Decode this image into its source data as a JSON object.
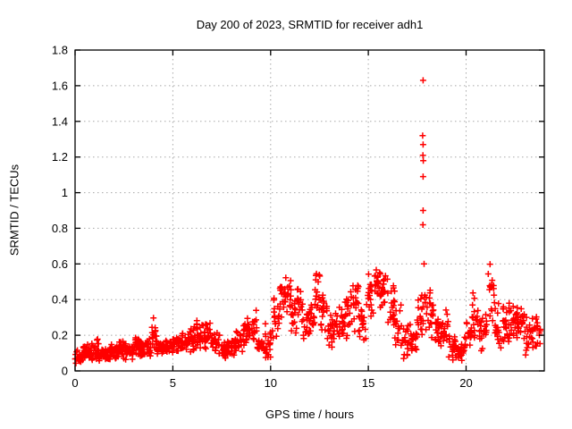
{
  "chart_data": {
    "type": "scatter",
    "title": "Day 200 of 2023, SRMTID for receiver adh1",
    "xlabel": "GPS time / hours",
    "ylabel": "SRMTID / TECUs",
    "xlim": [
      0,
      24
    ],
    "ylim": [
      0,
      1.8
    ],
    "xtick_values": [
      0,
      5,
      10,
      15,
      20
    ],
    "xtick_labels": [
      "0",
      "5",
      "10",
      "15",
      "20"
    ],
    "ytick_values": [
      0,
      0.2,
      0.4,
      0.6,
      0.8,
      1.0,
      1.2,
      1.4,
      1.6,
      1.8
    ],
    "ytick_labels": [
      "0",
      "0.2",
      "0.4",
      "0.6",
      "0.8",
      "1",
      "1.2",
      "1.4",
      "1.6",
      "1.8"
    ],
    "grid": true,
    "legend": "none",
    "marker": "plus",
    "marker_color": "#ff0000",
    "grid_color": "#a8a8a8",
    "axis_color": "#000000",
    "density_bins": [
      [
        0.0,
        0.3,
        0.04,
        0.12,
        20
      ],
      [
        0.3,
        0.6,
        0.05,
        0.15,
        20
      ],
      [
        0.6,
        0.9,
        0.05,
        0.17,
        20
      ],
      [
        0.9,
        1.2,
        0.06,
        0.19,
        20
      ],
      [
        1.2,
        1.5,
        0.05,
        0.14,
        20
      ],
      [
        1.5,
        1.8,
        0.05,
        0.13,
        18
      ],
      [
        1.8,
        2.1,
        0.06,
        0.16,
        20
      ],
      [
        2.1,
        2.4,
        0.07,
        0.17,
        20
      ],
      [
        2.4,
        2.7,
        0.06,
        0.18,
        20
      ],
      [
        2.7,
        3.0,
        0.06,
        0.15,
        20
      ],
      [
        3.0,
        3.3,
        0.08,
        0.2,
        20
      ],
      [
        3.3,
        3.6,
        0.07,
        0.18,
        20
      ],
      [
        3.6,
        3.9,
        0.08,
        0.21,
        20
      ],
      [
        3.9,
        4.2,
        0.1,
        0.31,
        18
      ],
      [
        4.2,
        4.6,
        0.08,
        0.19,
        24
      ],
      [
        4.6,
        5.0,
        0.09,
        0.19,
        24
      ],
      [
        5.0,
        5.4,
        0.1,
        0.21,
        24
      ],
      [
        5.4,
        5.8,
        0.1,
        0.22,
        24
      ],
      [
        5.8,
        6.2,
        0.1,
        0.26,
        24
      ],
      [
        6.2,
        6.6,
        0.1,
        0.3,
        24
      ],
      [
        6.6,
        7.0,
        0.1,
        0.28,
        24
      ],
      [
        7.0,
        7.4,
        0.08,
        0.22,
        22
      ],
      [
        7.4,
        7.8,
        0.06,
        0.18,
        22
      ],
      [
        7.8,
        8.2,
        0.07,
        0.19,
        22
      ],
      [
        8.2,
        8.6,
        0.09,
        0.25,
        22
      ],
      [
        8.6,
        9.0,
        0.12,
        0.32,
        22
      ],
      [
        9.0,
        9.3,
        0.15,
        0.37,
        16
      ],
      [
        9.3,
        9.7,
        0.08,
        0.2,
        18
      ],
      [
        9.7,
        10.1,
        0.04,
        0.28,
        20
      ],
      [
        10.1,
        10.45,
        0.15,
        0.48,
        18
      ],
      [
        10.45,
        10.75,
        0.25,
        0.56,
        16
      ],
      [
        10.75,
        11.05,
        0.28,
        0.55,
        16
      ],
      [
        11.05,
        11.35,
        0.18,
        0.42,
        16
      ],
      [
        11.35,
        11.65,
        0.25,
        0.5,
        16
      ],
      [
        11.65,
        12.0,
        0.12,
        0.35,
        18
      ],
      [
        12.0,
        12.25,
        0.18,
        0.42,
        14
      ],
      [
        12.25,
        12.55,
        0.28,
        0.62,
        16
      ],
      [
        12.55,
        12.9,
        0.18,
        0.52,
        18
      ],
      [
        12.9,
        13.3,
        0.12,
        0.35,
        20
      ],
      [
        13.3,
        13.7,
        0.15,
        0.42,
        20
      ],
      [
        13.7,
        14.1,
        0.18,
        0.45,
        20
      ],
      [
        14.1,
        14.5,
        0.22,
        0.52,
        20
      ],
      [
        14.5,
        14.9,
        0.15,
        0.4,
        20
      ],
      [
        14.9,
        15.25,
        0.28,
        0.55,
        18
      ],
      [
        15.25,
        15.6,
        0.35,
        0.63,
        18
      ],
      [
        15.6,
        16.0,
        0.3,
        0.58,
        20
      ],
      [
        16.0,
        16.35,
        0.25,
        0.52,
        18
      ],
      [
        16.35,
        16.7,
        0.1,
        0.4,
        18
      ],
      [
        16.7,
        17.1,
        0.05,
        0.28,
        20
      ],
      [
        17.1,
        17.5,
        0.08,
        0.3,
        20
      ],
      [
        17.5,
        17.9,
        0.18,
        0.47,
        20
      ],
      [
        17.9,
        18.3,
        0.15,
        0.52,
        20
      ],
      [
        18.3,
        18.7,
        0.12,
        0.38,
        20
      ],
      [
        18.7,
        19.1,
        0.08,
        0.35,
        20
      ],
      [
        19.1,
        19.5,
        0.04,
        0.22,
        20
      ],
      [
        19.5,
        19.9,
        0.03,
        0.18,
        20
      ],
      [
        19.9,
        20.3,
        0.08,
        0.33,
        20
      ],
      [
        20.3,
        20.7,
        0.12,
        0.45,
        20
      ],
      [
        20.7,
        21.1,
        0.1,
        0.35,
        20
      ],
      [
        21.1,
        21.45,
        0.25,
        0.64,
        16
      ],
      [
        21.45,
        21.8,
        0.12,
        0.4,
        18
      ],
      [
        21.8,
        22.2,
        0.15,
        0.4,
        22
      ],
      [
        22.2,
        22.6,
        0.18,
        0.42,
        22
      ],
      [
        22.6,
        23.0,
        0.15,
        0.4,
        22
      ],
      [
        23.0,
        23.4,
        0.08,
        0.35,
        20
      ],
      [
        23.4,
        23.85,
        0.1,
        0.33,
        20
      ]
    ],
    "outlier_points": [
      [
        17.8,
        1.63
      ],
      [
        17.78,
        1.32
      ],
      [
        17.8,
        1.27
      ],
      [
        17.79,
        1.21
      ],
      [
        17.81,
        1.18
      ],
      [
        17.8,
        1.09
      ],
      [
        17.8,
        0.9
      ],
      [
        17.79,
        0.82
      ],
      [
        17.85,
        0.6
      ]
    ]
  }
}
